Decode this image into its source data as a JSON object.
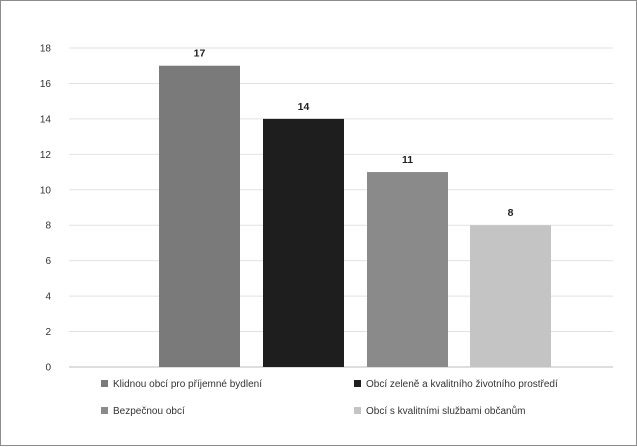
{
  "chart_data": {
    "type": "bar",
    "title": "",
    "xlabel": "",
    "ylabel": "",
    "ylim": [
      0,
      18
    ],
    "y_ticks": [
      0,
      2,
      4,
      6,
      8,
      10,
      12,
      14,
      16,
      18
    ],
    "grid": true,
    "legend_position": "bottom",
    "series": [
      {
        "name": "Klidnou obcí pro příjemné bydlení",
        "value": 17,
        "color": "#7a7a7a"
      },
      {
        "name": "Obcí zeleně a kvalitního životního prostředí",
        "value": 14,
        "color": "#1e1e1e"
      },
      {
        "name": "Bezpečnou obcí",
        "value": 11,
        "color": "#8a8a8a"
      },
      {
        "name": "Obcí s kvalitními službami občanům",
        "value": 8,
        "color": "#c4c4c4"
      }
    ],
    "data_labels": [
      "17",
      "14",
      "11",
      "8"
    ]
  }
}
